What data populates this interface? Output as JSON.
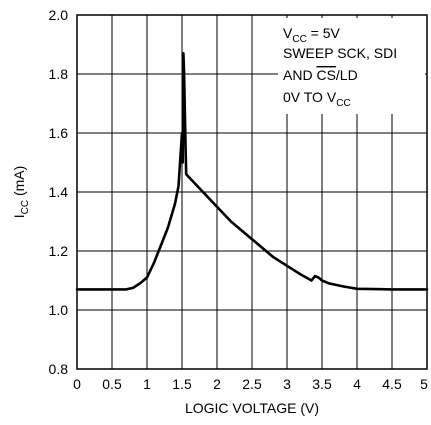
{
  "chart_data": {
    "type": "line",
    "xlabel": "LOGIC VOLTAGE (V)",
    "ylabel": {
      "main": "I",
      "sub": "CC",
      "rest": " (mA)"
    },
    "xlim": [
      0,
      5
    ],
    "ylim": [
      0.8,
      2.0
    ],
    "x_ticks": [
      0,
      0.5,
      1,
      1.5,
      2,
      2.5,
      3,
      3.5,
      4,
      4.5,
      5
    ],
    "x_tick_labels": [
      "0",
      "0.5",
      "1",
      "1.5",
      "2",
      "2.5",
      "3",
      "3.5",
      "4",
      "4.5",
      "5"
    ],
    "y_ticks": [
      0.8,
      1.0,
      1.2,
      1.4,
      1.6,
      1.8,
      2.0
    ],
    "y_tick_labels": [
      "0.8",
      "1.0",
      "1.2",
      "1.4",
      "1.6",
      "1.8",
      "2.0"
    ],
    "grid": true,
    "annotation": {
      "line1": {
        "main": "V",
        "sub": "CC",
        "rest": " = 5V"
      },
      "line2": "SWEEP SCK, SDI",
      "line3": {
        "pre": "AND ",
        "overline": "CS",
        "rest": "/LD"
      },
      "line4": {
        "main": "0V TO V",
        "sub": "CC"
      }
    },
    "series": [
      {
        "x": [
          0,
          0.5,
          0.7,
          0.8,
          0.9,
          1.0,
          1.1,
          1.2,
          1.3,
          1.4,
          1.45,
          1.5,
          1.51,
          1.52,
          1.53,
          1.54,
          1.55,
          1.56,
          1.6,
          1.8,
          2.0,
          2.2,
          2.5,
          2.8,
          3.0,
          3.2,
          3.35,
          3.4,
          3.45,
          3.5,
          3.6,
          3.8,
          4.0,
          4.5,
          5.0
        ],
        "y": [
          1.07,
          1.07,
          1.07,
          1.075,
          1.09,
          1.11,
          1.16,
          1.22,
          1.28,
          1.36,
          1.42,
          1.6,
          1.5,
          1.87,
          1.8,
          1.68,
          1.56,
          1.46,
          1.45,
          1.4,
          1.35,
          1.3,
          1.24,
          1.18,
          1.15,
          1.12,
          1.1,
          1.115,
          1.11,
          1.1,
          1.09,
          1.08,
          1.072,
          1.07,
          1.07
        ]
      }
    ]
  }
}
